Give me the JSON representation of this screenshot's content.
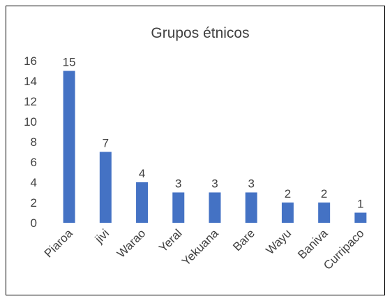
{
  "chart_data": {
    "type": "bar",
    "title": "Grupos étnicos",
    "categories": [
      "Piaroa",
      "jivi",
      "Warao",
      "Yeral",
      "Yekuana",
      "Bare",
      "Wayu",
      "Baniva",
      "Curripaco"
    ],
    "values": [
      15,
      7,
      4,
      3,
      3,
      3,
      2,
      2,
      1
    ],
    "data_labels": [
      "15",
      "7",
      "4",
      "3",
      "3",
      "3",
      "2",
      "2",
      "1"
    ],
    "y_ticks": [
      "0",
      "2",
      "4",
      "6",
      "8",
      "10",
      "12",
      "14",
      "16"
    ],
    "ylim": [
      0,
      16
    ],
    "grid": false,
    "legend": "none",
    "bar_color": "#4472C4",
    "text_color": "#404040"
  }
}
